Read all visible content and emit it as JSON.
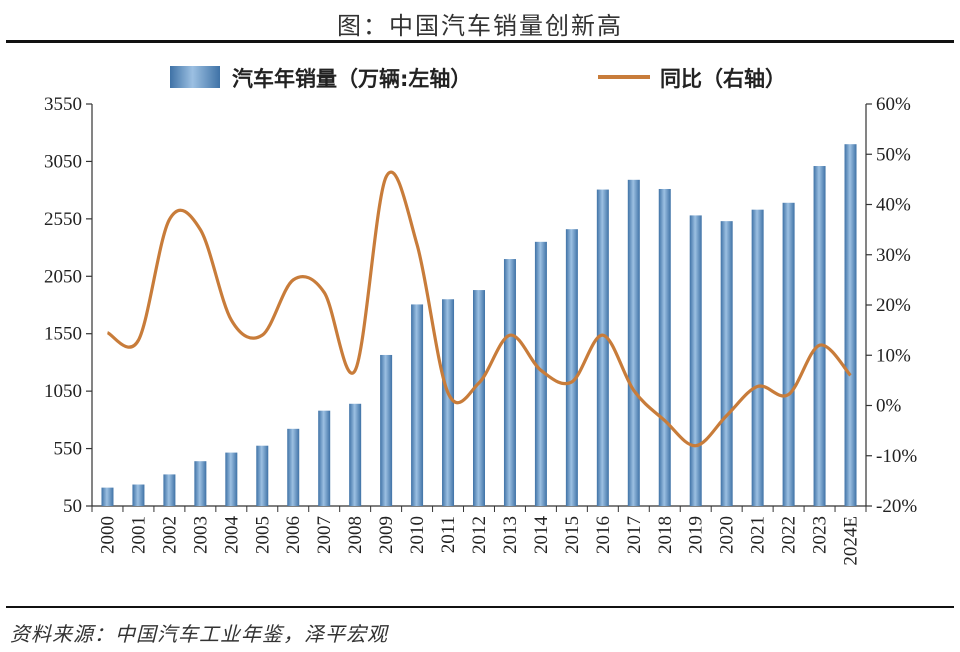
{
  "title": "图：中国汽车销量创新高",
  "source": "资料来源：中国汽车工业年鉴，泽平宏观",
  "chart_data": {
    "type": "bar",
    "categories": [
      "2000",
      "2001",
      "2002",
      "2003",
      "2004",
      "2005",
      "2006",
      "2007",
      "2008",
      "2009",
      "2010",
      "2011",
      "2012",
      "2013",
      "2014",
      "2015",
      "2016",
      "2017",
      "2018",
      "2019",
      "2020",
      "2021",
      "2022",
      "2023",
      "2024E"
    ],
    "series": [
      {
        "name": "汽车年销量（万辆:左轴）",
        "type": "bar",
        "axis": "left",
        "color": "#5b8fc0",
        "values": [
          210,
          237,
          325,
          440,
          515,
          575,
          722,
          880,
          940,
          1365,
          1805,
          1850,
          1930,
          2200,
          2350,
          2460,
          2805,
          2890,
          2810,
          2580,
          2530,
          2630,
          2690,
          3010,
          3200
        ]
      },
      {
        "name": "同比（右轴）",
        "type": "line",
        "axis": "right",
        "color": "#c87c3a",
        "values": [
          14.5,
          13.0,
          37.0,
          35.0,
          17.0,
          14.0,
          25.0,
          22.5,
          7.0,
          45.5,
          32.0,
          2.5,
          4.5,
          14.0,
          7.0,
          4.7,
          14.0,
          3.0,
          -3.0,
          -8.0,
          -2.0,
          3.8,
          2.2,
          12.0,
          6.0
        ]
      }
    ],
    "y_left": {
      "min": 50,
      "max": 3550,
      "ticks": [
        "50",
        "550",
        "1050",
        "1550",
        "2050",
        "2550",
        "3050",
        "3550"
      ]
    },
    "y_right": {
      "min": -20,
      "max": 60,
      "ticks": [
        "-20%",
        "-10%",
        "0%",
        "10%",
        "20%",
        "30%",
        "40%",
        "50%",
        "60%"
      ]
    },
    "legend_position": "top",
    "grid": false
  }
}
